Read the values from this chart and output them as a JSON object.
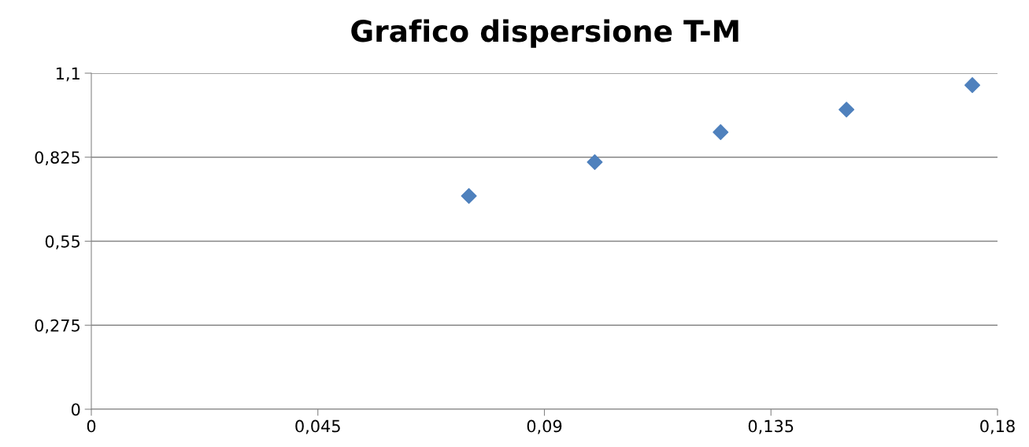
{
  "chart_data": {
    "type": "scatter",
    "title": "Grafico dispersione T-M",
    "x": [
      0.075,
      0.1,
      0.125,
      0.15,
      0.175
    ],
    "series": [
      {
        "color": "#4f81bd",
        "values": [
          0.698,
          0.809,
          0.907,
          0.981,
          1.061
        ]
      }
    ],
    "xlim": [
      0,
      0.18
    ],
    "xticks": [
      {
        "value": 0,
        "label": "0"
      },
      {
        "value": 0.045,
        "label": "0,045"
      },
      {
        "value": 0.09,
        "label": "0,09"
      },
      {
        "value": 0.135,
        "label": "0,135"
      },
      {
        "value": 0.18,
        "label": "0,18"
      }
    ],
    "ylim": [
      0,
      1.1
    ],
    "yticks": [
      {
        "value": 0,
        "label": "0"
      },
      {
        "value": 0.275,
        "label": "0,275"
      },
      {
        "value": 0.55,
        "label": "0,55"
      },
      {
        "value": 0.825,
        "label": "0,825"
      },
      {
        "value": 1.1,
        "label": "1,1"
      }
    ],
    "grid": "y",
    "marker": "diamond"
  }
}
